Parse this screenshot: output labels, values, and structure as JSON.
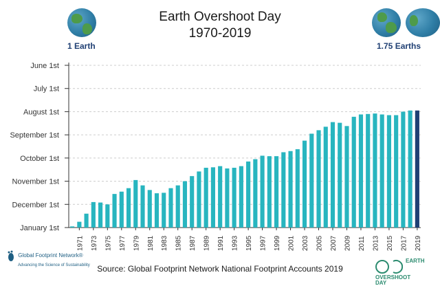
{
  "chart_data": {
    "type": "bar",
    "title": "Earth Overshoot Day",
    "subtitle": "1970-2019",
    "y_labels": [
      "June 1st",
      "July 1st",
      "August 1st",
      "September 1st",
      "October 1st",
      "November 1st",
      "December 1st",
      "January 1st"
    ],
    "ylim": [
      0,
      7
    ],
    "x_tick_labels": [
      "1971",
      "1973",
      "1975",
      "1977",
      "1979",
      "1981",
      "1983",
      "1985",
      "1987",
      "1989",
      "1991",
      "1993",
      "1995",
      "1997",
      "1999",
      "2001",
      "2003",
      "2005",
      "2007",
      "2009",
      "2011",
      "2013",
      "2015",
      "2017",
      "2019"
    ],
    "years": [
      1970,
      1971,
      1972,
      1973,
      1974,
      1975,
      1976,
      1977,
      1978,
      1979,
      1980,
      1981,
      1982,
      1983,
      1984,
      1985,
      1986,
      1987,
      1988,
      1989,
      1990,
      1991,
      1992,
      1993,
      1994,
      1995,
      1996,
      1997,
      1998,
      1999,
      2000,
      2001,
      2002,
      2003,
      2004,
      2005,
      2006,
      2007,
      2008,
      2009,
      2010,
      2011,
      2012,
      2013,
      2014,
      2015,
      2016,
      2017,
      2018,
      2019
    ],
    "values_months_before_jan1": [
      0.05,
      0.25,
      0.6,
      1.1,
      1.08,
      1.0,
      1.45,
      1.55,
      1.7,
      2.05,
      1.82,
      1.62,
      1.48,
      1.5,
      1.7,
      1.82,
      2.0,
      2.22,
      2.42,
      2.58,
      2.6,
      2.65,
      2.55,
      2.58,
      2.65,
      2.85,
      2.95,
      3.1,
      3.08,
      3.08,
      3.25,
      3.3,
      3.38,
      3.75,
      4.05,
      4.2,
      4.35,
      4.55,
      4.52,
      4.38,
      4.78,
      4.88,
      4.9,
      4.92,
      4.88,
      4.85,
      4.85,
      5.0,
      5.05,
      5.05
    ],
    "highlight_year": 2019,
    "colors": {
      "bar": "#28b5bf",
      "highlight": "#1f3f73",
      "grid": "#cccccc",
      "axis": "#333333"
    }
  },
  "header": {
    "title_line1": "Earth Overshoot Day",
    "title_line2": "1970-2019",
    "left_globe_label": "1 Earth",
    "right_globe_label": "1.75 Earths"
  },
  "footer": {
    "source": "Source: Global Footprint Network National Footprint Accounts 2019",
    "gfn_logo_text": "Global Footprint Network®",
    "gfn_tagline": "Advancing the Science of Sustainability",
    "eod_line1": "EARTH",
    "eod_line2": "OVERSHOOT",
    "eod_line3": "DAY"
  }
}
